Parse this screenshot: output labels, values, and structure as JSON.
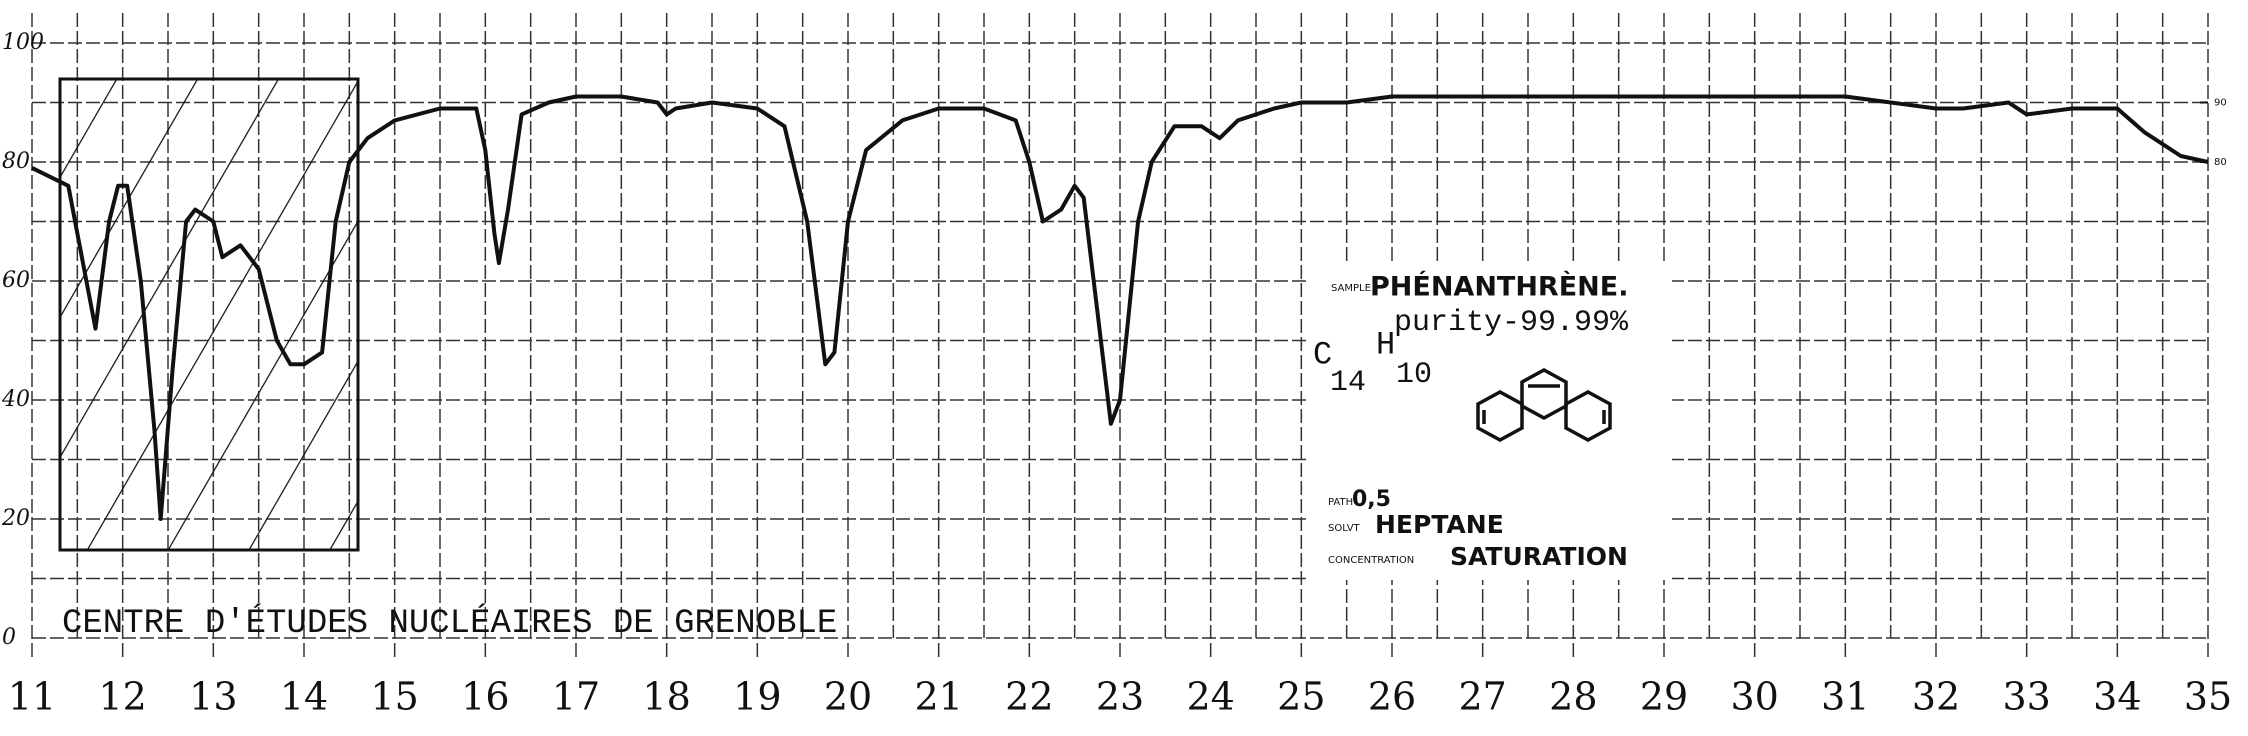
{
  "chart_data": {
    "type": "line",
    "color": "#111111",
    "grid": true,
    "xlim": [
      11,
      35
    ],
    "xticks": [
      11,
      12,
      13,
      14,
      15,
      16,
      17,
      18,
      19,
      20,
      21,
      22,
      23,
      24,
      25,
      26,
      27,
      28,
      29,
      30,
      31,
      32,
      33,
      34,
      35
    ],
    "xminor_ticks": [
      11.5,
      12.5,
      13.5,
      14.5,
      15.5,
      16.5,
      17.5,
      18.5,
      19.5,
      20.5,
      21.5,
      22.5,
      23.5,
      24.5,
      25.5,
      26.5,
      27.5,
      28.5,
      29.5,
      30.5,
      31.5,
      32.5,
      33.5,
      34.5
    ],
    "ylim": [
      0,
      100
    ],
    "yticks": [
      0,
      20,
      40,
      60,
      80,
      100
    ],
    "yminor_ticks": [
      10,
      30,
      50,
      70,
      90
    ],
    "y2lim": [
      0,
      100
    ],
    "y2ticks": [
      80,
      90
    ],
    "x": [
      11.0,
      11.4,
      11.6,
      11.7,
      11.85,
      11.95,
      12.05,
      12.2,
      12.35,
      12.42,
      12.55,
      12.7,
      12.8,
      13.0,
      13.1,
      13.3,
      13.5,
      13.7,
      13.85,
      14.0,
      14.2,
      14.35,
      14.5,
      14.7,
      15.0,
      15.5,
      15.9,
      16.0,
      16.1,
      16.15,
      16.25,
      16.4,
      16.7,
      17.0,
      17.5,
      17.9,
      18.0,
      18.1,
      18.5,
      19.0,
      19.3,
      19.55,
      19.75,
      19.85,
      20.0,
      20.2,
      20.6,
      21.0,
      21.5,
      21.85,
      22.0,
      22.15,
      22.35,
      22.5,
      22.6,
      22.75,
      22.9,
      23.0,
      23.2,
      23.35,
      23.6,
      23.9,
      24.1,
      24.3,
      24.7,
      25.0,
      25.5,
      26.0,
      26.5,
      27.0,
      27.5,
      28.0,
      28.5,
      29.0,
      29.5,
      30.0,
      30.5,
      31.0,
      31.5,
      32.0,
      32.3,
      32.8,
      33.0,
      33.5,
      34.0,
      34.3,
      34.7,
      35.0
    ],
    "values": [
      79,
      76,
      60,
      52,
      70,
      76,
      76,
      60,
      35,
      20,
      45,
      70,
      72,
      70,
      64,
      66,
      62,
      50,
      46,
      46,
      48,
      70,
      80,
      84,
      87,
      89,
      89,
      82,
      68,
      63,
      72,
      88,
      90,
      91,
      91,
      90,
      88,
      89,
      90,
      89,
      86,
      70,
      46,
      48,
      70,
      82,
      87,
      89,
      89,
      87,
      80,
      70,
      72,
      76,
      74,
      55,
      36,
      40,
      70,
      80,
      86,
      86,
      84,
      87,
      89,
      90,
      90,
      91,
      91,
      91,
      91,
      91,
      91,
      91,
      91,
      91,
      91,
      91,
      90,
      89,
      89,
      90,
      88,
      89,
      89,
      85,
      81,
      80
    ],
    "footer": "CENTRE D'ÉTUDES NUCLÉAIRES DE GRENOBLE",
    "sample": {
      "sample_label": "SAMPLE",
      "sample": "PHÉNANTHRÈNE.",
      "purity": "purity-99.99%",
      "formula": {
        "c": "C",
        "c_count": "14",
        "h": "H",
        "h_count": "10"
      },
      "path_label": "PATH",
      "path": "0,5",
      "solvent_label": "SOLVT",
      "solvent": "HEPTANE",
      "concentration_label": "CONCENTRATION",
      "concentration": "SATURATION"
    }
  }
}
